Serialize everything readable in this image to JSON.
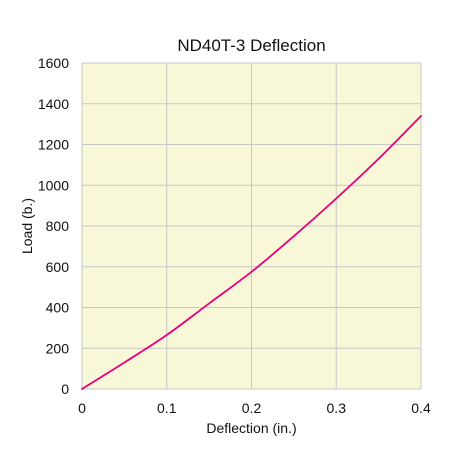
{
  "chart_data": {
    "type": "line",
    "title": "ND40T-3 Deflection",
    "xlabel": "Deflection (in.)",
    "ylabel": "Load (b.)",
    "xlim": [
      0,
      0.4
    ],
    "ylim": [
      0,
      1600
    ],
    "x_ticks": [
      "0",
      "0.1",
      "0.2",
      "0.3",
      "0.4"
    ],
    "y_ticks": [
      "0",
      "200",
      "400",
      "600",
      "800",
      "1000",
      "1200",
      "1400",
      "1600"
    ],
    "grid": true,
    "legend": "none",
    "colors": {
      "plot_background": "#f8f7d8",
      "grid": "#c8c8c8",
      "line": "#e6007e"
    },
    "series": [
      {
        "x": [
          0,
          0.05,
          0.1,
          0.15,
          0.2,
          0.25,
          0.3,
          0.35,
          0.4
        ],
        "y": [
          0,
          130,
          265,
          420,
          575,
          750,
          935,
          1130,
          1340
        ]
      }
    ]
  }
}
